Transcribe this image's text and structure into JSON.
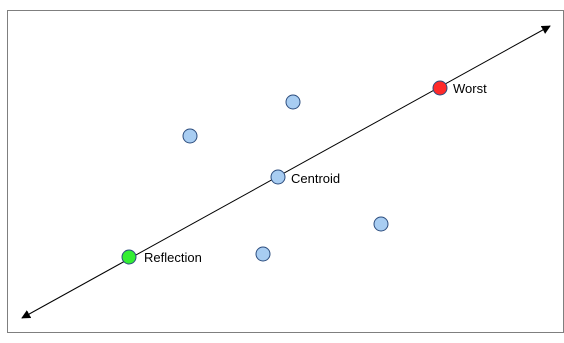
{
  "diagram": {
    "labels": {
      "worst": "Worst",
      "centroid": "Centroid",
      "reflection": "Reflection"
    },
    "colors": {
      "worst": "#ff2a2a",
      "reflection": "#33ee33",
      "point": "#a8cdf2",
      "outline": "#2c4d7e",
      "axis": "#000000",
      "border": "#7f7f7f"
    }
  }
}
